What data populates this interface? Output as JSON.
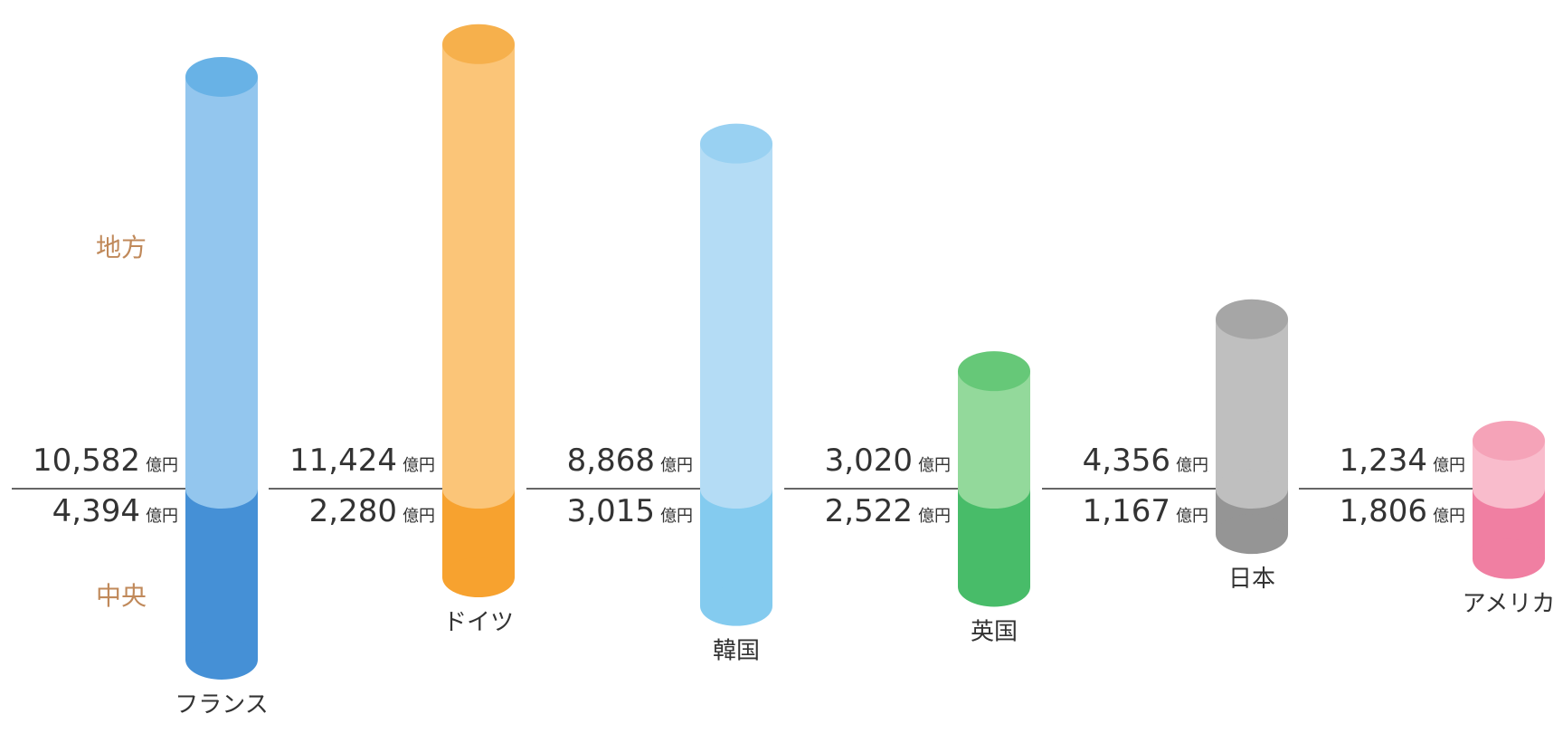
{
  "chart_data": {
    "type": "cylinder",
    "categories": [
      "フランス",
      "ドイツ",
      "韓国",
      "英国",
      "日本",
      "アメリカ"
    ],
    "unit": "億円",
    "series": [
      {
        "name": "地方",
        "values": [
          10582,
          11424,
          8868,
          3020,
          4356,
          1234
        ],
        "value_labels": [
          "10,582",
          "11,424",
          "8,868",
          "3,020",
          "4,356",
          "1,234"
        ],
        "colors": [
          "#93c6ee",
          "#fbc578",
          "#b4dcf5",
          "#93d99b",
          "#bfbfbf",
          "#f9bccc"
        ],
        "cap_colors": [
          "#68b2e6",
          "#f6b04c",
          "#99d1f2",
          "#66c878",
          "#a6a6a6",
          "#f5a3b8"
        ]
      },
      {
        "name": "中央",
        "values": [
          4394,
          2280,
          3015,
          2522,
          1167,
          1806
        ],
        "value_labels": [
          "4,394",
          "2,280",
          "3,015",
          "2,522",
          "1,167",
          "1,806"
        ],
        "colors": [
          "#4590d6",
          "#f7a22f",
          "#84cbef",
          "#48bc69",
          "#959595",
          "#f07fa2"
        ]
      }
    ]
  }
}
